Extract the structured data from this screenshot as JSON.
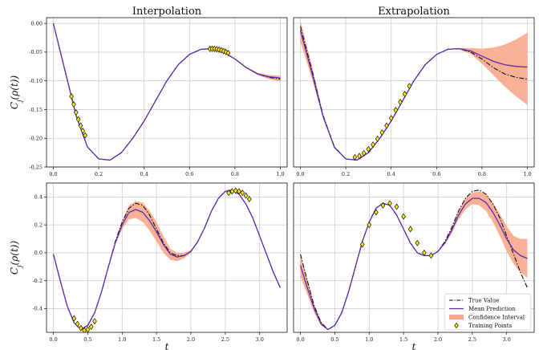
{
  "chart_data": [
    {
      "type": "line",
      "title": "Interpolation",
      "ylabel": "C_j(ρ(t))",
      "xlabel": "",
      "xlim": [
        -0.03,
        1.03
      ],
      "ylim": [
        -0.25,
        0.01
      ],
      "xticks": [
        0.0,
        0.2,
        0.4,
        0.6,
        0.8,
        1.0
      ],
      "xtick_labels": [
        "0.0",
        "0.2",
        "0.4",
        "0.6",
        "0.8",
        "1.0"
      ],
      "yticks": [
        0.0,
        -0.05,
        -0.1,
        -0.15,
        -0.2,
        -0.25
      ],
      "ytick_labels": [
        "0.00",
        "-0.05",
        "-0.10",
        "-0.15",
        "-0.20",
        "-0.25"
      ],
      "grid": true,
      "x": [
        0.0,
        0.05,
        0.1,
        0.15,
        0.2,
        0.25,
        0.3,
        0.35,
        0.4,
        0.45,
        0.5,
        0.55,
        0.6,
        0.65,
        0.7,
        0.75,
        0.8,
        0.85,
        0.9,
        0.95,
        1.0
      ],
      "series": [
        {
          "name": "True Value",
          "values": [
            0.0,
            -0.08,
            -0.16,
            -0.215,
            -0.236,
            -0.238,
            -0.225,
            -0.2,
            -0.17,
            -0.135,
            -0.1,
            -0.072,
            -0.054,
            -0.045,
            -0.044,
            -0.05,
            -0.062,
            -0.077,
            -0.088,
            -0.094,
            -0.097
          ]
        },
        {
          "name": "Mean Prediction",
          "values": [
            0.0,
            -0.08,
            -0.16,
            -0.215,
            -0.236,
            -0.238,
            -0.225,
            -0.2,
            -0.17,
            -0.135,
            -0.1,
            -0.072,
            -0.054,
            -0.045,
            -0.044,
            -0.05,
            -0.062,
            -0.077,
            -0.088,
            -0.093,
            -0.095
          ]
        }
      ],
      "band": {
        "name": "Confidence Interval",
        "lower": [
          0.0,
          -0.08,
          -0.16,
          -0.215,
          -0.236,
          -0.238,
          -0.225,
          -0.2,
          -0.17,
          -0.135,
          -0.1,
          -0.072,
          -0.054,
          -0.045,
          -0.044,
          -0.05,
          -0.062,
          -0.078,
          -0.09,
          -0.097,
          -0.101
        ],
        "upper": [
          0.0,
          -0.08,
          -0.16,
          -0.215,
          -0.236,
          -0.238,
          -0.225,
          -0.2,
          -0.17,
          -0.135,
          -0.1,
          -0.072,
          -0.054,
          -0.045,
          -0.044,
          -0.05,
          -0.062,
          -0.076,
          -0.086,
          -0.09,
          -0.091
        ]
      },
      "training_points": {
        "name": "Training Points",
        "x": [
          0.08,
          0.09,
          0.1,
          0.11,
          0.12,
          0.13,
          0.14,
          0.69,
          0.7,
          0.71,
          0.72,
          0.73,
          0.74,
          0.75,
          0.76,
          0.77
        ],
        "y": [
          -0.127,
          -0.141,
          -0.155,
          -0.167,
          -0.178,
          -0.187,
          -0.195,
          -0.0444,
          -0.0442,
          -0.0443,
          -0.0448,
          -0.0457,
          -0.0468,
          -0.0482,
          -0.0498,
          -0.0515
        ]
      }
    },
    {
      "type": "line",
      "title": "Extrapolation",
      "ylabel": "",
      "xlabel": "",
      "xlim": [
        -0.03,
        1.03
      ],
      "ylim": [
        -0.25,
        0.01
      ],
      "xticks": [
        0.0,
        0.2,
        0.4,
        0.6,
        0.8,
        1.0
      ],
      "xtick_labels": [
        "0.0",
        "0.2",
        "0.4",
        "0.6",
        "0.8",
        "1.0"
      ],
      "yticks": [],
      "ytick_labels": [],
      "grid": true,
      "x": [
        0.0,
        0.05,
        0.1,
        0.15,
        0.2,
        0.25,
        0.3,
        0.35,
        0.4,
        0.45,
        0.5,
        0.55,
        0.6,
        0.65,
        0.7,
        0.75,
        0.8,
        0.85,
        0.9,
        0.95,
        1.0
      ],
      "series": [
        {
          "name": "True Value",
          "values": [
            -0.005,
            -0.08,
            -0.16,
            -0.215,
            -0.236,
            -0.238,
            -0.225,
            -0.2,
            -0.17,
            -0.135,
            -0.1,
            -0.072,
            -0.054,
            -0.045,
            -0.044,
            -0.05,
            -0.062,
            -0.077,
            -0.088,
            -0.094,
            -0.097
          ]
        },
        {
          "name": "Mean Prediction",
          "values": [
            -0.012,
            -0.085,
            -0.162,
            -0.216,
            -0.236,
            -0.238,
            -0.225,
            -0.2,
            -0.17,
            -0.135,
            -0.1,
            -0.072,
            -0.054,
            -0.045,
            -0.044,
            -0.048,
            -0.057,
            -0.066,
            -0.072,
            -0.075,
            -0.076
          ]
        }
      ],
      "band": {
        "name": "Confidence Interval",
        "lower": [
          -0.032,
          -0.095,
          -0.165,
          -0.217,
          -0.236,
          -0.238,
          -0.225,
          -0.2,
          -0.17,
          -0.135,
          -0.1,
          -0.072,
          -0.054,
          -0.045,
          -0.045,
          -0.053,
          -0.07,
          -0.09,
          -0.11,
          -0.127,
          -0.142
        ],
        "upper": [
          0.005,
          -0.072,
          -0.158,
          -0.214,
          -0.236,
          -0.238,
          -0.225,
          -0.2,
          -0.17,
          -0.135,
          -0.1,
          -0.072,
          -0.054,
          -0.045,
          -0.043,
          -0.043,
          -0.044,
          -0.042,
          -0.037,
          -0.028,
          -0.016
        ]
      },
      "training_points": {
        "name": "Training Points",
        "x": [
          0.24,
          0.26,
          0.28,
          0.3,
          0.32,
          0.34,
          0.36,
          0.38,
          0.4,
          0.42,
          0.44,
          0.46,
          0.48
        ],
        "y": [
          -0.233,
          -0.231,
          -0.226,
          -0.219,
          -0.211,
          -0.201,
          -0.19,
          -0.178,
          -0.165,
          -0.151,
          -0.137,
          -0.123,
          -0.109
        ]
      }
    },
    {
      "type": "line",
      "title": "",
      "ylabel": "C_j(ρ(t))",
      "xlabel": "t",
      "xlim": [
        -0.1,
        3.4
      ],
      "ylim": [
        -0.57,
        0.5
      ],
      "xticks": [
        0.0,
        0.5,
        1.0,
        1.5,
        2.0,
        2.5,
        3.0
      ],
      "xtick_labels": [
        "0.0",
        "0.5",
        "1.0",
        "1.5",
        "2.0",
        "2.5",
        "3.0"
      ],
      "yticks": [
        0.4,
        0.2,
        0.0,
        -0.2,
        -0.4
      ],
      "ytick_labels": [
        "0.4",
        "0.2",
        "0.0",
        "-0.2",
        "-0.4"
      ],
      "grid": true,
      "x": [
        0.0,
        0.1,
        0.2,
        0.3,
        0.4,
        0.5,
        0.6,
        0.7,
        0.8,
        0.9,
        1.0,
        1.1,
        1.2,
        1.3,
        1.4,
        1.5,
        1.6,
        1.7,
        1.8,
        1.9,
        2.0,
        2.1,
        2.2,
        2.3,
        2.4,
        2.5,
        2.6,
        2.7,
        2.8,
        2.9,
        3.0,
        3.1,
        3.2,
        3.3
      ],
      "series": [
        {
          "name": "True Value",
          "values": [
            -0.01,
            -0.2,
            -0.38,
            -0.5,
            -0.55,
            -0.52,
            -0.43,
            -0.28,
            -0.1,
            0.08,
            0.22,
            0.32,
            0.355,
            0.34,
            0.27,
            0.17,
            0.07,
            0.0,
            -0.02,
            -0.02,
            0.01,
            0.08,
            0.18,
            0.3,
            0.39,
            0.44,
            0.45,
            0.42,
            0.35,
            0.25,
            0.12,
            -0.01,
            -0.14,
            -0.25
          ]
        },
        {
          "name": "Mean Prediction",
          "values": [
            -0.01,
            -0.2,
            -0.38,
            -0.5,
            -0.55,
            -0.52,
            -0.43,
            -0.28,
            -0.1,
            0.07,
            0.2,
            0.29,
            0.31,
            0.29,
            0.23,
            0.15,
            0.06,
            -0.01,
            -0.03,
            -0.02,
            0.01,
            0.08,
            0.18,
            0.3,
            0.39,
            0.44,
            0.45,
            0.42,
            0.35,
            0.25,
            0.12,
            -0.01,
            -0.14,
            -0.25
          ]
        }
      ],
      "band": {
        "name": "Confidence Interval",
        "lower": [
          -0.01,
          -0.2,
          -0.38,
          -0.5,
          -0.55,
          -0.52,
          -0.43,
          -0.28,
          -0.1,
          0.06,
          0.17,
          0.24,
          0.25,
          0.22,
          0.16,
          0.08,
          0.0,
          -0.05,
          -0.06,
          -0.04,
          0.0,
          0.08,
          0.18,
          0.3,
          0.39,
          0.44,
          0.45,
          0.42,
          0.35,
          0.25,
          0.12,
          -0.01,
          -0.14,
          -0.25
        ],
        "upper": [
          -0.01,
          -0.2,
          -0.38,
          -0.5,
          -0.55,
          -0.52,
          -0.43,
          -0.28,
          -0.1,
          0.08,
          0.23,
          0.34,
          0.37,
          0.36,
          0.3,
          0.22,
          0.12,
          0.03,
          0.0,
          0.0,
          0.02,
          0.08,
          0.18,
          0.3,
          0.39,
          0.44,
          0.45,
          0.42,
          0.35,
          0.25,
          0.12,
          -0.01,
          -0.14,
          -0.25
        ]
      },
      "training_points": {
        "name": "Training Points",
        "x": [
          0.3,
          0.35,
          0.4,
          0.45,
          0.5,
          0.55,
          0.6,
          2.55,
          2.6,
          2.65,
          2.7,
          2.75,
          2.8,
          2.85
        ],
        "y": [
          -0.47,
          -0.51,
          -0.54,
          -0.555,
          -0.55,
          -0.53,
          -0.49,
          0.43,
          0.44,
          0.445,
          0.44,
          0.43,
          0.41,
          0.385
        ]
      }
    },
    {
      "type": "line",
      "title": "",
      "ylabel": "",
      "xlabel": "t",
      "xlim": [
        -0.1,
        3.4
      ],
      "ylim": [
        -0.57,
        0.5
      ],
      "xticks": [
        0.0,
        0.5,
        1.0,
        1.5,
        2.0,
        2.5,
        3.0
      ],
      "xtick_labels": [
        "0.0",
        "0.5",
        "1.0",
        "1.5",
        "2.0",
        "2.5",
        "3.0"
      ],
      "yticks": [],
      "ytick_labels": [],
      "grid": true,
      "legend_position": "bottom-right",
      "x": [
        0.0,
        0.1,
        0.2,
        0.3,
        0.4,
        0.5,
        0.6,
        0.7,
        0.8,
        0.9,
        1.0,
        1.1,
        1.2,
        1.3,
        1.4,
        1.5,
        1.6,
        1.7,
        1.8,
        1.9,
        2.0,
        2.1,
        2.2,
        2.3,
        2.4,
        2.5,
        2.6,
        2.7,
        2.8,
        2.9,
        3.0,
        3.1,
        3.2,
        3.3
      ],
      "series": [
        {
          "name": "True Value",
          "values": [
            -0.01,
            -0.2,
            -0.38,
            -0.5,
            -0.55,
            -0.52,
            -0.43,
            -0.28,
            -0.1,
            0.08,
            0.22,
            0.32,
            0.355,
            0.34,
            0.27,
            0.17,
            0.07,
            0.0,
            -0.02,
            -0.02,
            0.01,
            0.08,
            0.18,
            0.3,
            0.39,
            0.44,
            0.45,
            0.42,
            0.35,
            0.25,
            0.12,
            -0.01,
            -0.14,
            -0.25
          ]
        },
        {
          "name": "Mean Prediction",
          "values": [
            -0.09,
            -0.25,
            -0.4,
            -0.51,
            -0.55,
            -0.52,
            -0.43,
            -0.28,
            -0.1,
            0.08,
            0.22,
            0.32,
            0.355,
            0.34,
            0.27,
            0.17,
            0.07,
            0.0,
            -0.02,
            -0.02,
            0.01,
            0.07,
            0.16,
            0.27,
            0.35,
            0.39,
            0.39,
            0.36,
            0.29,
            0.2,
            0.1,
            0.02,
            -0.02,
            -0.04
          ]
        }
      ],
      "band": {
        "name": "Confidence Interval",
        "lower": [
          -0.17,
          -0.3,
          -0.43,
          -0.52,
          -0.55,
          -0.52,
          -0.43,
          -0.28,
          -0.1,
          0.08,
          0.22,
          0.32,
          0.355,
          0.34,
          0.27,
          0.17,
          0.07,
          0.0,
          -0.02,
          -0.02,
          0.01,
          0.06,
          0.14,
          0.24,
          0.31,
          0.35,
          0.34,
          0.3,
          0.22,
          0.12,
          0.01,
          -0.08,
          -0.14,
          -0.18
        ],
        "upper": [
          -0.01,
          -0.19,
          -0.37,
          -0.49,
          -0.55,
          -0.52,
          -0.43,
          -0.28,
          -0.1,
          0.08,
          0.22,
          0.32,
          0.355,
          0.34,
          0.27,
          0.17,
          0.07,
          0.0,
          -0.02,
          -0.02,
          0.01,
          0.08,
          0.18,
          0.3,
          0.39,
          0.43,
          0.44,
          0.42,
          0.36,
          0.28,
          0.19,
          0.12,
          0.1,
          0.1
        ]
      },
      "training_points": {
        "name": "Training Points",
        "x": [
          0.9,
          1.0,
          1.1,
          1.2,
          1.3,
          1.4,
          1.5,
          1.6,
          1.7,
          1.8,
          1.9
        ],
        "y": [
          0.06,
          0.2,
          0.29,
          0.34,
          0.355,
          0.33,
          0.26,
          0.17,
          0.07,
          0.0,
          -0.02
        ]
      }
    }
  ],
  "legend": {
    "items": [
      {
        "label": "True Value",
        "style": "dashdot"
      },
      {
        "label": "Mean Prediction",
        "style": "line"
      },
      {
        "label": "Confidence Interval",
        "style": "band"
      },
      {
        "label": "Training Points",
        "style": "marker"
      }
    ]
  },
  "colors": {
    "true_value": "#111111",
    "mean_prediction": "#5b2bb0",
    "confidence_interval": "#f7a78c",
    "training_points": "#ffe600",
    "grid": "#cfcfcf"
  }
}
